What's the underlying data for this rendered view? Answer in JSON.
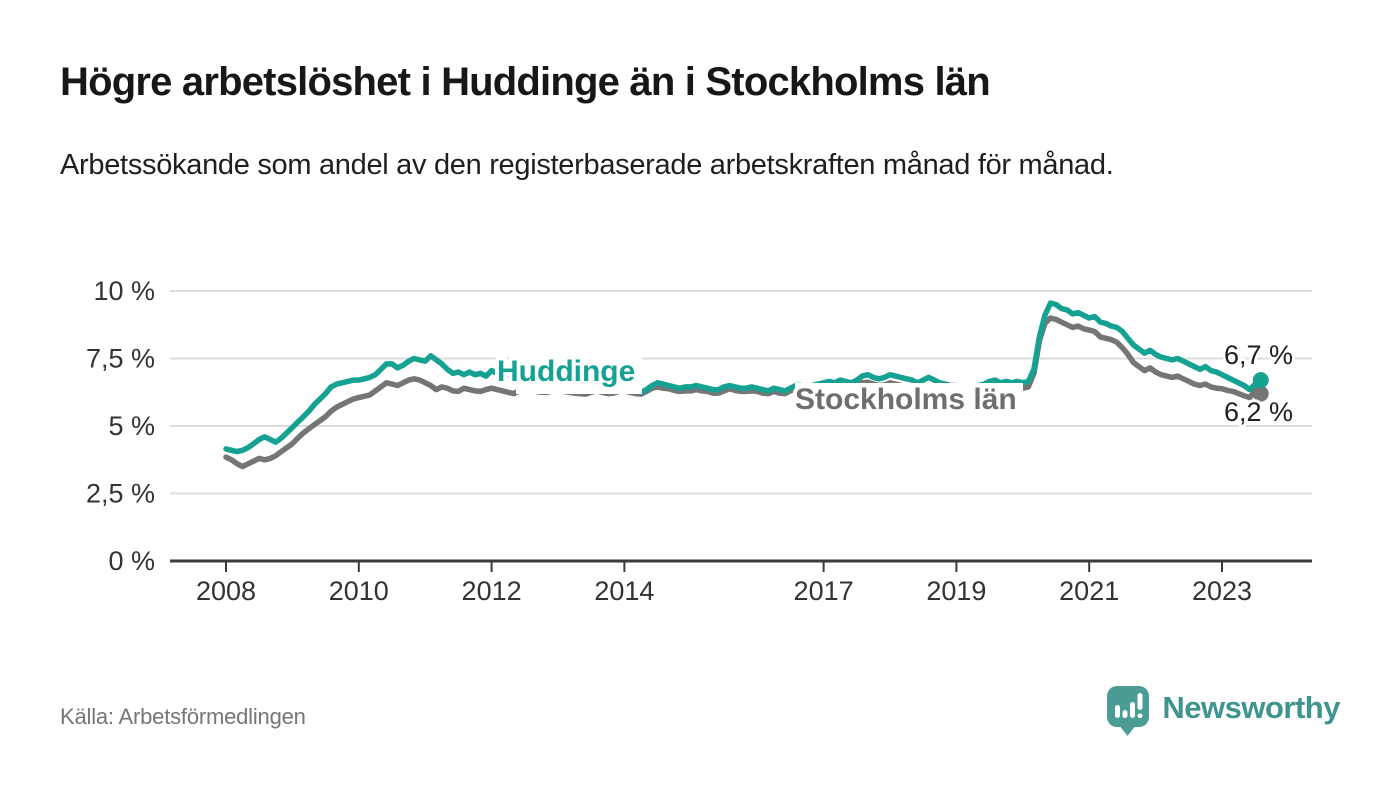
{
  "header": {
    "title": "Högre arbetslöshet i Huddinge än i Stockholms län",
    "subtitle": "Arbetssökande som andel av den registerbaserade arbetskraften månad för månad."
  },
  "footer": {
    "source": "Källa: Arbetsförmedlingen",
    "brand": "Newsworthy",
    "logo_icon": "newsworthy-speech-bubble-bar-chart-icon"
  },
  "colors": {
    "huddinge_line": "#15a292",
    "stockholm_line": "#757575",
    "stockholm_label": "#6e6e6e",
    "grid": "#dcdcdc",
    "axis": "#3b3b3b",
    "tick_label": "#333333",
    "value_label": "#1f1f1f",
    "brand_teal": "#4b9c95"
  },
  "chart_data": {
    "type": "line",
    "unit": "%",
    "x_interval": "monthly",
    "x_start": "2008-01",
    "x_end": "2023-08",
    "ylim": [
      0,
      10
    ],
    "grid": true,
    "y_ticks": [
      {
        "value": 0,
        "label": "0 %"
      },
      {
        "value": 2.5,
        "label": "2,5 %"
      },
      {
        "value": 5,
        "label": "5 %"
      },
      {
        "value": 7.5,
        "label": "7,5 %"
      },
      {
        "value": 10,
        "label": "10 %"
      }
    ],
    "x_ticks": [
      {
        "year": 2008,
        "label": "2008"
      },
      {
        "year": 2010,
        "label": "2010"
      },
      {
        "year": 2012,
        "label": "2012"
      },
      {
        "year": 2014,
        "label": "2014"
      },
      {
        "year": 2017,
        "label": "2017"
      },
      {
        "year": 2019,
        "label": "2019"
      },
      {
        "year": 2021,
        "label": "2021"
      },
      {
        "year": 2023,
        "label": "2023"
      }
    ],
    "series": [
      {
        "name": "Huddinge",
        "color": "#15a292",
        "end_label": "6,7 %",
        "values": [
          4.15,
          4.1,
          4.05,
          4.1,
          4.2,
          4.35,
          4.5,
          4.6,
          4.5,
          4.4,
          4.55,
          4.75,
          4.95,
          5.15,
          5.35,
          5.55,
          5.8,
          6.0,
          6.2,
          6.45,
          6.55,
          6.6,
          6.65,
          6.7,
          6.7,
          6.75,
          6.8,
          6.9,
          7.1,
          7.3,
          7.3,
          7.15,
          7.25,
          7.4,
          7.5,
          7.45,
          7.4,
          7.6,
          7.45,
          7.3,
          7.1,
          6.95,
          7.0,
          6.9,
          7.0,
          6.9,
          6.95,
          6.85,
          7.05,
          6.95,
          6.9,
          6.95,
          6.85,
          6.8,
          6.85,
          6.8,
          6.75,
          6.7,
          6.65,
          6.6,
          6.6,
          6.55,
          6.5,
          6.5,
          6.45,
          6.4,
          6.45,
          6.5,
          6.45,
          6.4,
          6.4,
          6.45,
          6.4,
          6.35,
          6.3,
          6.25,
          6.35,
          6.5,
          6.6,
          6.55,
          6.5,
          6.45,
          6.4,
          6.45,
          6.45,
          6.5,
          6.45,
          6.4,
          6.35,
          6.35,
          6.45,
          6.5,
          6.45,
          6.4,
          6.4,
          6.45,
          6.4,
          6.35,
          6.3,
          6.4,
          6.35,
          6.3,
          6.4,
          6.5,
          6.5,
          6.45,
          6.5,
          6.55,
          6.6,
          6.65,
          6.6,
          6.7,
          6.65,
          6.6,
          6.7,
          6.85,
          6.9,
          6.8,
          6.75,
          6.8,
          6.9,
          6.85,
          6.8,
          6.75,
          6.7,
          6.6,
          6.7,
          6.8,
          6.7,
          6.6,
          6.55,
          6.5,
          6.5,
          6.45,
          6.4,
          6.45,
          6.5,
          6.55,
          6.65,
          6.7,
          6.6,
          6.65,
          6.6,
          6.65,
          6.6,
          6.65,
          7.1,
          8.3,
          9.1,
          9.55,
          9.5,
          9.35,
          9.3,
          9.15,
          9.2,
          9.1,
          9.0,
          9.05,
          8.85,
          8.8,
          8.7,
          8.65,
          8.5,
          8.25,
          8.0,
          7.85,
          7.7,
          7.8,
          7.65,
          7.55,
          7.5,
          7.45,
          7.5,
          7.4,
          7.3,
          7.2,
          7.1,
          7.2,
          7.05,
          7.0,
          6.9,
          6.8,
          6.7,
          6.6,
          6.5,
          6.35,
          6.55,
          6.7
        ]
      },
      {
        "name": "Stockholms län",
        "color": "#757575",
        "end_label": "6,2 %",
        "values": [
          3.85,
          3.75,
          3.6,
          3.5,
          3.6,
          3.7,
          3.8,
          3.75,
          3.8,
          3.9,
          4.05,
          4.2,
          4.35,
          4.55,
          4.75,
          4.9,
          5.05,
          5.2,
          5.35,
          5.55,
          5.7,
          5.8,
          5.9,
          6.0,
          6.05,
          6.1,
          6.15,
          6.3,
          6.45,
          6.6,
          6.55,
          6.5,
          6.6,
          6.7,
          6.75,
          6.7,
          6.6,
          6.5,
          6.35,
          6.45,
          6.4,
          6.3,
          6.28,
          6.4,
          6.35,
          6.3,
          6.28,
          6.35,
          6.4,
          6.35,
          6.3,
          6.25,
          6.2,
          6.3,
          6.3,
          6.3,
          6.28,
          6.25,
          6.25,
          6.3,
          6.3,
          6.28,
          6.25,
          6.22,
          6.2,
          6.18,
          6.25,
          6.3,
          6.25,
          6.2,
          6.22,
          6.28,
          6.3,
          6.25,
          6.2,
          6.18,
          6.28,
          6.4,
          6.45,
          6.4,
          6.38,
          6.32,
          6.28,
          6.3,
          6.3,
          6.35,
          6.3,
          6.28,
          6.22,
          6.22,
          6.3,
          6.38,
          6.32,
          6.28,
          6.28,
          6.3,
          6.28,
          6.22,
          6.2,
          6.28,
          6.22,
          6.2,
          6.3,
          6.38,
          6.38,
          6.32,
          6.38,
          6.42,
          6.45,
          6.5,
          6.45,
          6.52,
          6.48,
          6.45,
          6.52,
          6.6,
          6.62,
          6.55,
          6.5,
          6.52,
          6.6,
          6.55,
          6.5,
          6.45,
          6.42,
          6.35,
          6.42,
          6.5,
          6.42,
          6.35,
          6.3,
          6.28,
          6.28,
          6.25,
          6.2,
          6.25,
          6.3,
          6.35,
          6.45,
          6.5,
          6.4,
          6.42,
          6.38,
          6.42,
          6.4,
          6.45,
          6.95,
          8.15,
          8.8,
          9.0,
          8.95,
          8.85,
          8.75,
          8.65,
          8.7,
          8.6,
          8.55,
          8.5,
          8.3,
          8.25,
          8.2,
          8.1,
          7.9,
          7.65,
          7.35,
          7.2,
          7.05,
          7.15,
          7.0,
          6.9,
          6.85,
          6.8,
          6.85,
          6.75,
          6.65,
          6.55,
          6.5,
          6.55,
          6.45,
          6.4,
          6.38,
          6.32,
          6.28,
          6.2,
          6.12,
          6.05,
          6.3,
          6.2
        ]
      }
    ]
  }
}
